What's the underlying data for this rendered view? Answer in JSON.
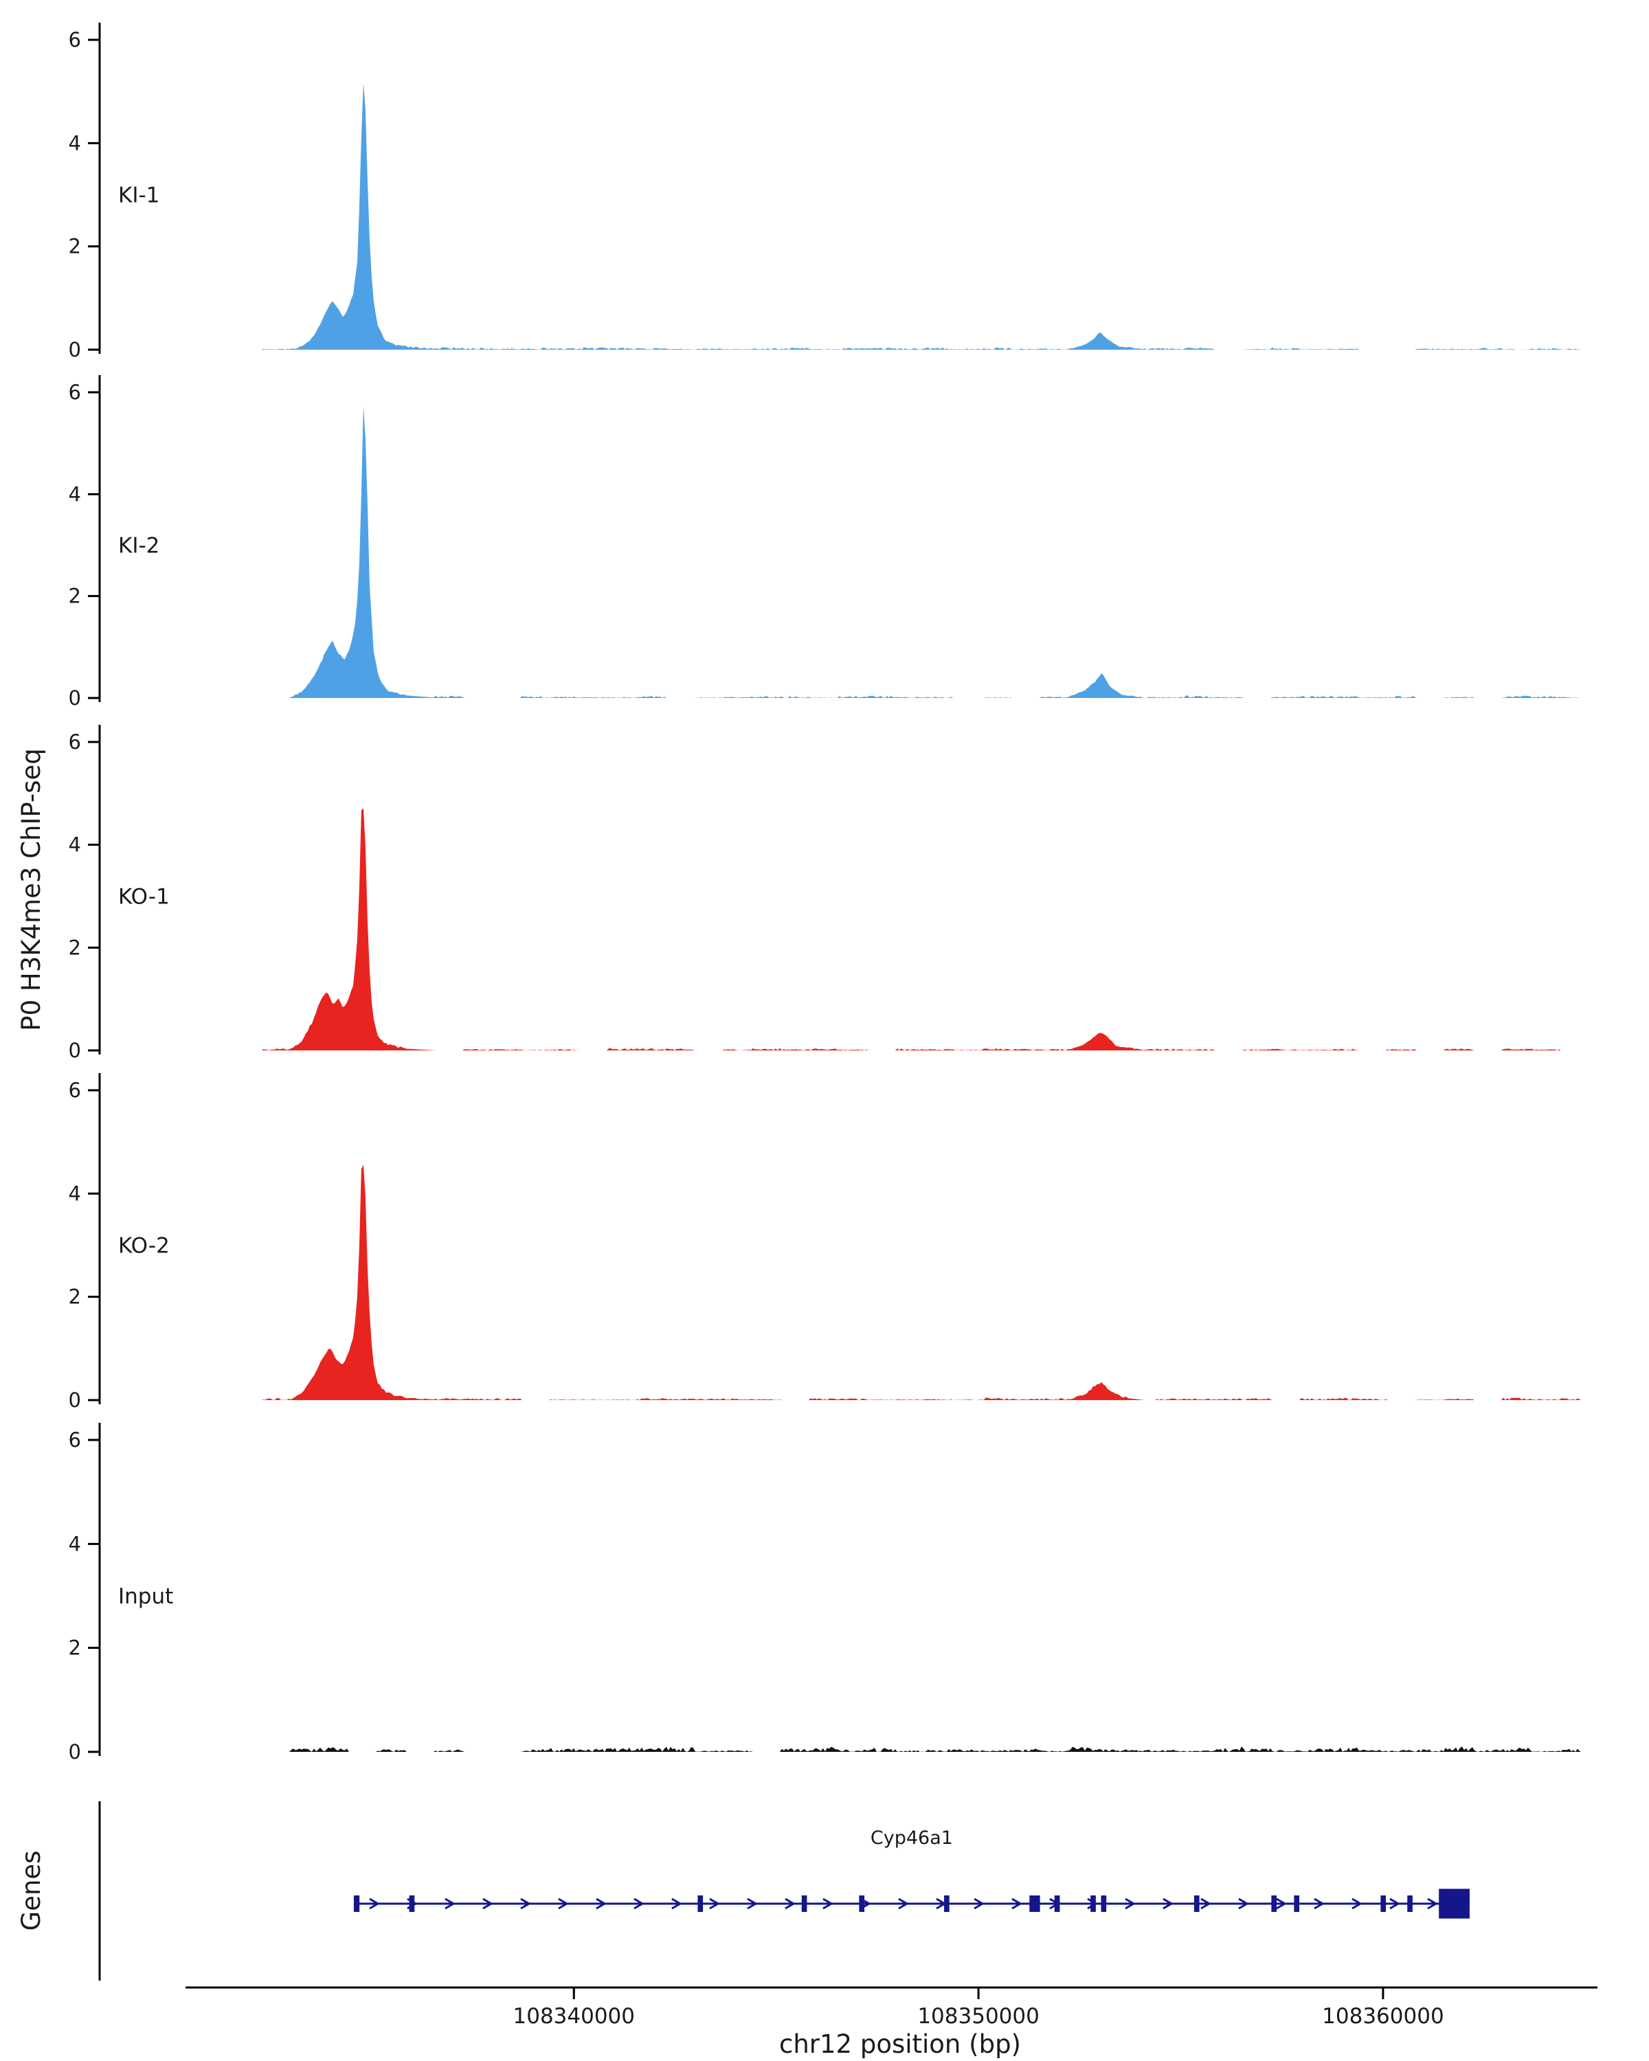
{
  "figure": {
    "y_axis_title": "P0 H3K4me3 ChIP-seq",
    "genes_axis_title": "Genes",
    "x_axis_title": "chr12 position (bp)"
  },
  "chart_data": {
    "type": "area",
    "title": "",
    "xlabel": "chr12 position (bp)",
    "ylabel": "P0 H3K4me3 ChIP-seq",
    "ylim": [
      0,
      6
    ],
    "y_ticks": [
      0,
      2,
      4,
      6
    ],
    "x_domain": [
      108330400,
      108365300
    ],
    "data_range": [
      108332300,
      108364900
    ],
    "x_ticks": [
      108340000,
      108350000,
      108360000
    ],
    "x_tick_labels": [
      "108340000",
      "108350000",
      "108360000"
    ],
    "grid": false,
    "tracks": [
      {
        "label": "KI-1",
        "color": "#4fa1e6",
        "noise": 0.04,
        "main_peak": {
          "position": 108334780,
          "height": 5.3
        },
        "secondary_peak": {
          "position": 108353000,
          "height": 0.34
        },
        "profile": [
          [
            108333100,
            0
          ],
          [
            108333400,
            0.1
          ],
          [
            108333650,
            0.35
          ],
          [
            108333850,
            0.7
          ],
          [
            108334020,
            0.95
          ],
          [
            108334170,
            0.8
          ],
          [
            108334300,
            0.62
          ],
          [
            108334420,
            0.8
          ],
          [
            108334540,
            1.05
          ],
          [
            108334640,
            1.6
          ],
          [
            108334720,
            3.2
          ],
          [
            108334780,
            5.3
          ],
          [
            108334850,
            4.6
          ],
          [
            108334930,
            2.4
          ],
          [
            108335030,
            1.0
          ],
          [
            108335160,
            0.42
          ],
          [
            108335340,
            0.16
          ],
          [
            108335600,
            0.07
          ],
          [
            108336100,
            0.02
          ],
          [
            108336800,
            0
          ],
          [
            108352200,
            0
          ],
          [
            108352600,
            0.08
          ],
          [
            108352850,
            0.2
          ],
          [
            108353000,
            0.34
          ],
          [
            108353200,
            0.18
          ],
          [
            108353500,
            0.05
          ],
          [
            108354100,
            0
          ]
        ]
      },
      {
        "label": "KI-2",
        "color": "#4fa1e6",
        "noise": 0.04,
        "main_peak": {
          "position": 108334800,
          "height": 5.85
        },
        "secondary_peak": {
          "position": 108353050,
          "height": 0.5
        },
        "profile": [
          [
            108333000,
            0
          ],
          [
            108333300,
            0.12
          ],
          [
            108333600,
            0.45
          ],
          [
            108333850,
            0.85
          ],
          [
            108334020,
            1.1
          ],
          [
            108334180,
            0.85
          ],
          [
            108334330,
            0.72
          ],
          [
            108334460,
            0.95
          ],
          [
            108334580,
            1.35
          ],
          [
            108334680,
            2.2
          ],
          [
            108334760,
            4.4
          ],
          [
            108334800,
            5.85
          ],
          [
            108334870,
            4.7
          ],
          [
            108334950,
            2.2
          ],
          [
            108335050,
            0.9
          ],
          [
            108335180,
            0.38
          ],
          [
            108335380,
            0.14
          ],
          [
            108335700,
            0.06
          ],
          [
            108336700,
            0
          ],
          [
            108352200,
            0
          ],
          [
            108352600,
            0.12
          ],
          [
            108352900,
            0.32
          ],
          [
            108353050,
            0.5
          ],
          [
            108353250,
            0.22
          ],
          [
            108353550,
            0.06
          ],
          [
            108354100,
            0
          ]
        ]
      },
      {
        "label": "KO-1",
        "color": "#e82420",
        "noise": 0.04,
        "main_peak": {
          "position": 108334760,
          "height": 5.1
        },
        "secondary_peak": {
          "position": 108353000,
          "height": 0.35
        },
        "profile": [
          [
            108333000,
            0
          ],
          [
            108333300,
            0.18
          ],
          [
            108333550,
            0.55
          ],
          [
            108333750,
            1.0
          ],
          [
            108333900,
            1.15
          ],
          [
            108334050,
            0.88
          ],
          [
            108334180,
            1.02
          ],
          [
            108334300,
            0.82
          ],
          [
            108334440,
            1.0
          ],
          [
            108334560,
            1.3
          ],
          [
            108334670,
            2.4
          ],
          [
            108334760,
            5.1
          ],
          [
            108334840,
            4.2
          ],
          [
            108334920,
            1.9
          ],
          [
            108335020,
            0.7
          ],
          [
            108335140,
            0.28
          ],
          [
            108335340,
            0.11
          ],
          [
            108335700,
            0.04
          ],
          [
            108336600,
            0
          ],
          [
            108352200,
            0
          ],
          [
            108352600,
            0.1
          ],
          [
            108352850,
            0.25
          ],
          [
            108353000,
            0.35
          ],
          [
            108353150,
            0.28
          ],
          [
            108353400,
            0.08
          ],
          [
            108354000,
            0
          ]
        ]
      },
      {
        "label": "KO-2",
        "color": "#e82420",
        "noise": 0.04,
        "main_peak": {
          "position": 108334760,
          "height": 4.9
        },
        "secondary_peak": {
          "position": 108353050,
          "height": 0.33
        },
        "profile": [
          [
            108333000,
            0
          ],
          [
            108333300,
            0.15
          ],
          [
            108333580,
            0.48
          ],
          [
            108333800,
            0.82
          ],
          [
            108333970,
            1.0
          ],
          [
            108334120,
            0.78
          ],
          [
            108334280,
            0.66
          ],
          [
            108334430,
            0.9
          ],
          [
            108334560,
            1.25
          ],
          [
            108334670,
            2.2
          ],
          [
            108334760,
            4.9
          ],
          [
            108334840,
            4.1
          ],
          [
            108334920,
            2.0
          ],
          [
            108335030,
            0.75
          ],
          [
            108335150,
            0.3
          ],
          [
            108335360,
            0.12
          ],
          [
            108335720,
            0.04
          ],
          [
            108336600,
            0
          ],
          [
            108352300,
            0
          ],
          [
            108352650,
            0.1
          ],
          [
            108352900,
            0.28
          ],
          [
            108353050,
            0.33
          ],
          [
            108353250,
            0.15
          ],
          [
            108353550,
            0.05
          ],
          [
            108354100,
            0
          ]
        ]
      },
      {
        "label": "Input",
        "color": "#111111",
        "noise": 0.09,
        "main_peak": null,
        "secondary_peak": null,
        "profile": [
          [
            108331700,
            0
          ],
          [
            108364800,
            0
          ]
        ]
      }
    ],
    "gene": {
      "name": "Cyp46a1",
      "color": "#15158c",
      "strand": "+",
      "start": 108334560,
      "end": 108362140,
      "exons": [
        [
          108334560,
          108334700
        ],
        [
          108335930,
          108336060
        ],
        [
          108343060,
          108343190
        ],
        [
          108345630,
          108345760
        ],
        [
          108347050,
          108347180
        ],
        [
          108349150,
          108349280
        ],
        [
          108351260,
          108351520
        ],
        [
          108351880,
          108352010
        ],
        [
          108352770,
          108352900
        ],
        [
          108353030,
          108353160
        ],
        [
          108355330,
          108355460
        ],
        [
          108357240,
          108357370
        ],
        [
          108357800,
          108357930
        ],
        [
          108359940,
          108360070
        ],
        [
          108360600,
          108360730
        ],
        [
          108361380,
          108362140,
          1.8
        ]
      ]
    }
  }
}
